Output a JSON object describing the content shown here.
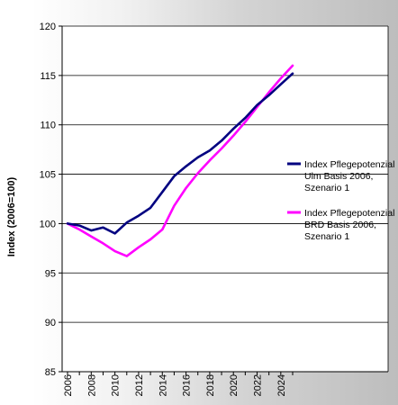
{
  "chart_data": {
    "type": "line",
    "title": "",
    "xlabel": "",
    "ylabel": "Index (2006=100)",
    "xlim": [
      2006,
      2025
    ],
    "ylim": [
      85,
      120
    ],
    "yticks": [
      85,
      90,
      95,
      100,
      105,
      110,
      115,
      120
    ],
    "xticks": [
      2006,
      2008,
      2010,
      2012,
      2014,
      2016,
      2018,
      2020,
      2022,
      2024
    ],
    "grid": "horizontal",
    "legend_position": "right",
    "series": [
      {
        "name": "Index Pflegepotenzial Ulm Basis 2006, Szenario 1",
        "color": "#000080",
        "x": [
          2006,
          2007,
          2008,
          2009,
          2010,
          2011,
          2012,
          2013,
          2014,
          2015,
          2016,
          2017,
          2018,
          2019,
          2020,
          2021,
          2022,
          2023,
          2024,
          2025
        ],
        "values": [
          100.0,
          99.8,
          99.3,
          99.6,
          99.0,
          100.1,
          100.8,
          101.6,
          103.2,
          104.8,
          105.8,
          106.7,
          107.4,
          108.4,
          109.6,
          110.7,
          112.0,
          113.0,
          114.1,
          115.2
        ]
      },
      {
        "name": "Index Pflegepotenzial BRD Basis 2006, Szenario 1",
        "color": "#ff00ff",
        "x": [
          2006,
          2007,
          2008,
          2009,
          2010,
          2011,
          2012,
          2013,
          2014,
          2015,
          2016,
          2017,
          2018,
          2019,
          2020,
          2021,
          2022,
          2023,
          2024,
          2025
        ],
        "values": [
          100.0,
          99.4,
          98.7,
          98.0,
          97.2,
          96.7,
          97.6,
          98.4,
          99.4,
          101.8,
          103.6,
          105.1,
          106.4,
          107.6,
          108.9,
          110.3,
          111.8,
          113.3,
          114.7,
          116.0
        ]
      }
    ]
  },
  "legend": {
    "items": [
      {
        "lines": [
          "Index Pflegepotenzial",
          "Ulm Basis 2006,",
          "Szenario 1"
        ],
        "color": "#000080"
      },
      {
        "lines": [
          "Index Pflegepotenzial",
          "BRD Basis 2006,",
          "Szenario 1"
        ],
        "color": "#ff00ff"
      }
    ]
  }
}
